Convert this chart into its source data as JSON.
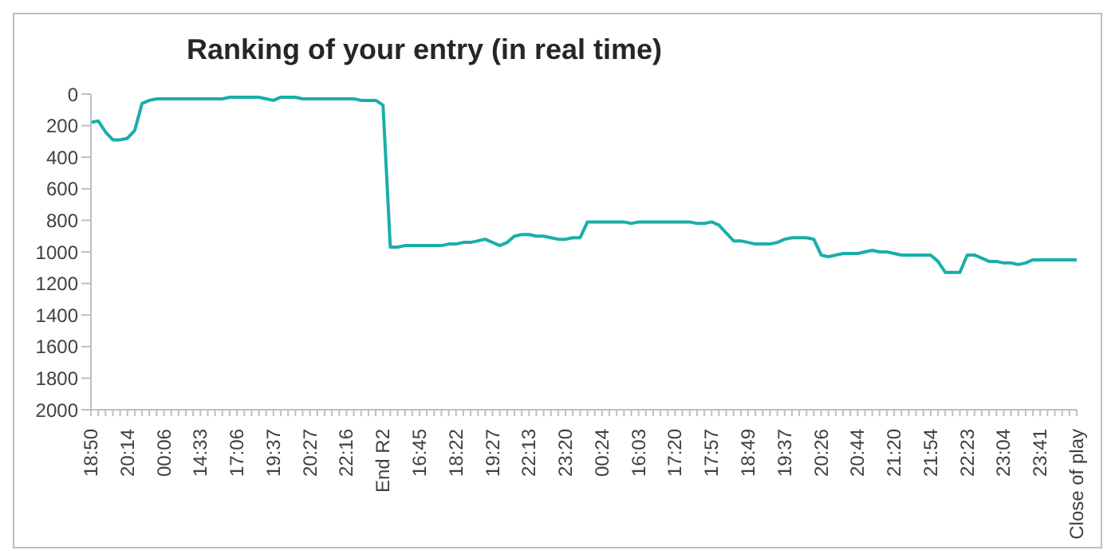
{
  "chart_data": {
    "type": "line",
    "title": "Ranking of your entry (in real time)",
    "categories": [
      "18:50",
      null,
      null,
      null,
      null,
      "20:14",
      null,
      null,
      null,
      null,
      "00:06",
      null,
      null,
      null,
      null,
      "14:33",
      null,
      null,
      null,
      null,
      "17:06",
      null,
      null,
      null,
      null,
      "19:37",
      null,
      null,
      null,
      null,
      "20:27",
      null,
      null,
      null,
      null,
      "22:16",
      null,
      null,
      null,
      null,
      "End R2",
      null,
      null,
      null,
      null,
      "16:45",
      null,
      null,
      null,
      null,
      "18:22",
      null,
      null,
      null,
      null,
      "19:27",
      null,
      null,
      null,
      null,
      "22:13",
      null,
      null,
      null,
      null,
      "23:20",
      null,
      null,
      null,
      null,
      "00:24",
      null,
      null,
      null,
      null,
      "16:03",
      null,
      null,
      null,
      null,
      "17:20",
      null,
      null,
      null,
      null,
      "17:57",
      null,
      null,
      null,
      null,
      "18:49",
      null,
      null,
      null,
      null,
      "19:37",
      null,
      null,
      null,
      null,
      "20:26",
      null,
      null,
      null,
      null,
      "20:44",
      null,
      null,
      null,
      null,
      "21:20",
      null,
      null,
      null,
      null,
      "21:54",
      null,
      null,
      null,
      null,
      "22:23",
      null,
      null,
      null,
      null,
      "23:04",
      null,
      null,
      null,
      null,
      "23:41",
      null,
      null,
      null,
      null,
      "Close of play"
    ],
    "series": [
      {
        "color": "#1aaeaa",
        "values": [
          180,
          170,
          240,
          290,
          290,
          280,
          230,
          60,
          40,
          30,
          30,
          30,
          30,
          30,
          30,
          30,
          30,
          30,
          30,
          20,
          20,
          20,
          20,
          20,
          30,
          40,
          20,
          20,
          20,
          30,
          30,
          30,
          30,
          30,
          30,
          30,
          30,
          40,
          40,
          40,
          70,
          970,
          970,
          960,
          960,
          960,
          960,
          960,
          960,
          950,
          950,
          940,
          940,
          930,
          920,
          940,
          960,
          940,
          900,
          890,
          890,
          900,
          900,
          910,
          920,
          920,
          910,
          910,
          810,
          810,
          810,
          810,
          810,
          810,
          820,
          810,
          810,
          810,
          810,
          810,
          810,
          810,
          810,
          820,
          820,
          810,
          830,
          880,
          930,
          930,
          940,
          950,
          950,
          950,
          940,
          920,
          910,
          910,
          910,
          920,
          1020,
          1030,
          1020,
          1010,
          1010,
          1010,
          1000,
          990,
          1000,
          1000,
          1010,
          1020,
          1020,
          1020,
          1020,
          1020,
          1060,
          1130,
          1130,
          1130,
          1020,
          1020,
          1040,
          1060,
          1060,
          1070,
          1070,
          1080,
          1070,
          1050,
          1050,
          1050,
          1050,
          1050,
          1050,
          1050
        ]
      }
    ],
    "ylim": [
      2000,
      0
    ],
    "yticks": [
      0,
      200,
      400,
      600,
      800,
      1000,
      1200,
      1400,
      1600,
      1800,
      2000
    ],
    "grid": false,
    "legend": false,
    "marker": "none",
    "line_style": "solid"
  }
}
